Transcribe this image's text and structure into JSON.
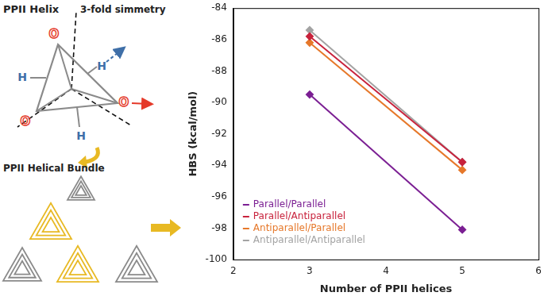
{
  "diagram": {
    "title": "PPII Helix",
    "symmetry_label": "3-fold simmetry",
    "oxygen_label": "O",
    "hydrogen_label": "H",
    "bundle_label": "PPII Helical Bundle"
  },
  "chart_data": {
    "type": "line",
    "x_label": "Number of PPII helices",
    "y_label": "HBS (kcal/mol)",
    "x": [
      3,
      5
    ],
    "series": [
      {
        "name": "Parallel/Parallel",
        "color": "#7b1f93",
        "values": [
          -89.5,
          -98.1
        ]
      },
      {
        "name": "Parallel/Antiparallel",
        "color": "#c8223c",
        "values": [
          -85.8,
          -93.8
        ]
      },
      {
        "name": "Antiparallel/Parallel",
        "color": "#e6782a",
        "values": [
          -86.2,
          -94.3
        ]
      },
      {
        "name": "Antiparallel/Antiparallel",
        "color": "#a3a3a3",
        "values": [
          -85.4,
          -93.8
        ]
      }
    ],
    "xlim": [
      2,
      6
    ],
    "xticks": [
      2,
      3,
      4,
      5,
      6
    ],
    "ylim": [
      -100,
      -84
    ],
    "yticks": [
      -100,
      -98,
      -96,
      -94,
      -92,
      -90,
      -88,
      -86,
      -84
    ],
    "grid": false,
    "legend": "lower left",
    "marker": "diamond",
    "line_style": "solid"
  }
}
